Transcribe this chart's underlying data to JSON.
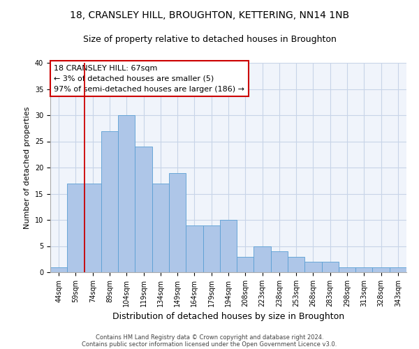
{
  "title1": "18, CRANSLEY HILL, BROUGHTON, KETTERING, NN14 1NB",
  "title2": "Size of property relative to detached houses in Broughton",
  "xlabel": "Distribution of detached houses by size in Broughton",
  "ylabel": "Number of detached properties",
  "categories": [
    "44sqm",
    "59sqm",
    "74sqm",
    "89sqm",
    "104sqm",
    "119sqm",
    "134sqm",
    "149sqm",
    "164sqm",
    "179sqm",
    "194sqm",
    "208sqm",
    "223sqm",
    "238sqm",
    "253sqm",
    "268sqm",
    "283sqm",
    "298sqm",
    "313sqm",
    "328sqm",
    "343sqm"
  ],
  "values": [
    1,
    17,
    17,
    27,
    30,
    24,
    17,
    19,
    9,
    9,
    10,
    3,
    5,
    4,
    3,
    2,
    2,
    1,
    1,
    1,
    1
  ],
  "bar_color": "#aec6e8",
  "bar_edge_color": "#5a9fd4",
  "vline_x": 1.5,
  "vline_color": "#cc0000",
  "annotation_text": "18 CRANSLEY HILL: 67sqm\n← 3% of detached houses are smaller (5)\n97% of semi-detached houses are larger (186) →",
  "annotation_box_color": "#ffffff",
  "annotation_box_edge": "#cc0000",
  "footer1": "Contains HM Land Registry data © Crown copyright and database right 2024.",
  "footer2": "Contains public sector information licensed under the Open Government Licence v3.0.",
  "ylim": [
    0,
    40
  ],
  "background_color": "#f0f4fb",
  "grid_color": "#c8d4e8",
  "title1_fontsize": 10,
  "title2_fontsize": 9,
  "ylabel_fontsize": 8,
  "xlabel_fontsize": 9,
  "tick_fontsize": 7,
  "annotation_fontsize": 8,
  "footer_fontsize": 6
}
